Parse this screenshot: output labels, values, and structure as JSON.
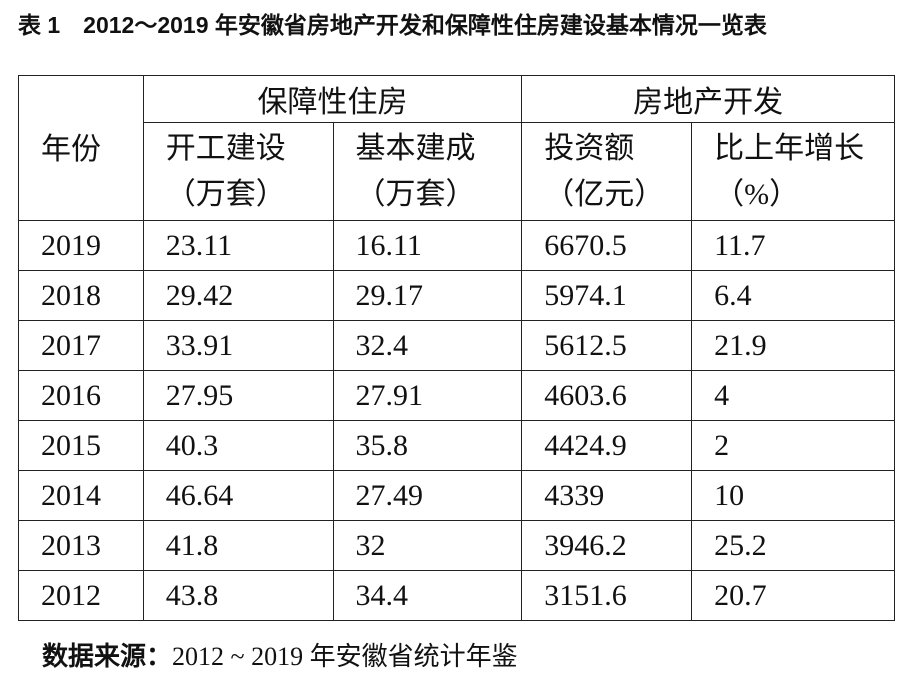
{
  "header": {
    "title": "表 1　2012～2019 年安徽省房地产开发和保障性住房建设基本情况一览表"
  },
  "table": {
    "year_header": "年份",
    "groups": [
      "保障性住房",
      "房地产开发"
    ],
    "columns": [
      [
        "开工建设",
        "（万套）"
      ],
      [
        "基本建成",
        "（万套）"
      ],
      [
        "投资额",
        "（亿元）"
      ],
      [
        "比上年增长",
        "（%）"
      ]
    ],
    "rows": [
      [
        2019,
        23.11,
        16.11,
        6670.5,
        11.7
      ],
      [
        2018,
        29.42,
        29.17,
        5974.1,
        6.4
      ],
      [
        2017,
        33.91,
        32.4,
        5612.5,
        21.9
      ],
      [
        2016,
        27.95,
        27.91,
        4603.6,
        4
      ],
      [
        2015,
        40.3,
        35.8,
        4424.9,
        2
      ],
      [
        2014,
        46.64,
        27.49,
        4339,
        10
      ],
      [
        2013,
        41.8,
        32,
        3946.2,
        25.2
      ],
      [
        2012,
        43.8,
        34.4,
        3151.6,
        20.7
      ]
    ]
  },
  "footer": {
    "label": "数据来源：",
    "text": "2012 ~ 2019 年安徽省统计年鉴"
  }
}
